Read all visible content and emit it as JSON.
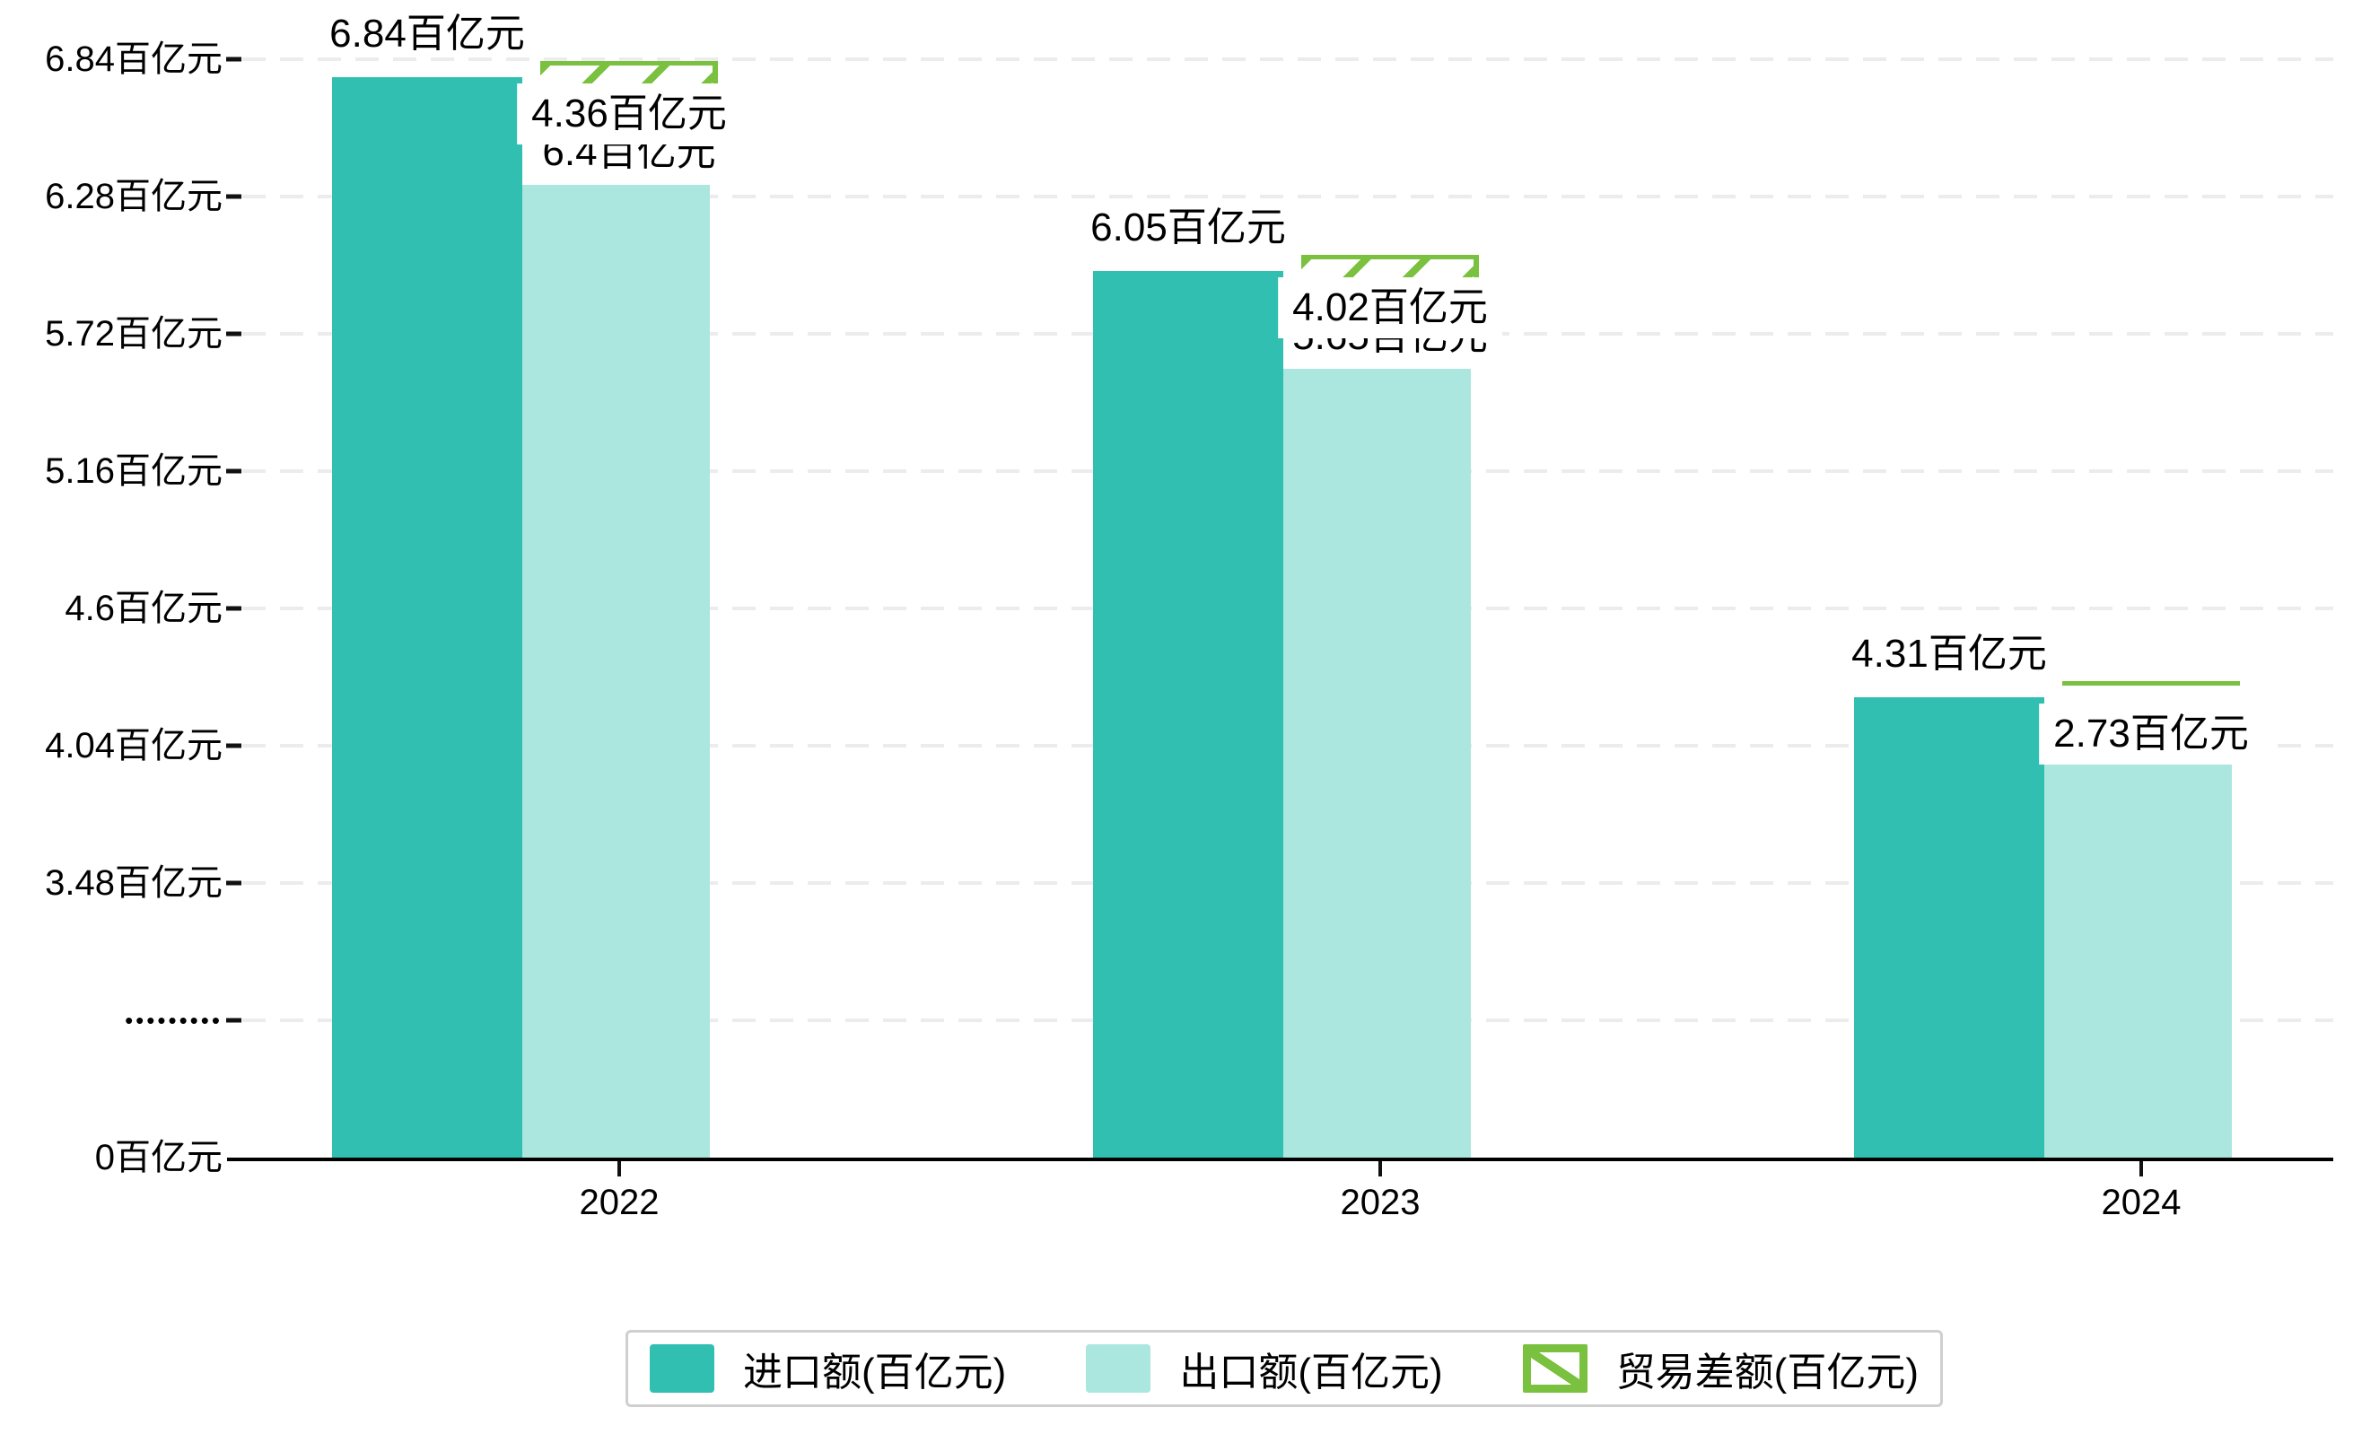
{
  "chart_data": {
    "type": "bar",
    "title": "",
    "categories": [
      "2022",
      "2023",
      "2024"
    ],
    "series": [
      {
        "name": "进口额(百亿元)",
        "color": "#31BFB2",
        "values": [
          6.84,
          6.05,
          4.31
        ],
        "labels": [
          "6.84百亿元",
          "6.05百亿元",
          "4.31百亿元"
        ]
      },
      {
        "name": "出口额(百亿元)",
        "color": "#ABE7DF",
        "values": [
          6.4,
          5.65,
          4.04
        ],
        "labels": [
          "6.4百亿元",
          "5.65百亿元",
          ""
        ]
      },
      {
        "name": "贸易差额(百亿元)",
        "color": "#79C13F",
        "style": "hatched",
        "values": [
          4.36,
          4.02,
          2.73
        ],
        "labels": [
          "4.36百亿元",
          "4.02百亿元",
          "2.73百亿元"
        ],
        "hatch_visible": [
          true,
          true,
          false
        ]
      }
    ],
    "y_axis": {
      "unit": "百亿元",
      "axis_break": true,
      "tick_labels": [
        "6.84百亿元",
        "6.28百亿元",
        "5.72百亿元",
        "5.16百亿元",
        "4.6百亿元",
        "4.04百亿元",
        "3.48百亿元",
        "•••••••••",
        "0百亿元"
      ],
      "tick_values": [
        6.84,
        6.28,
        5.72,
        5.16,
        4.6,
        4.04,
        3.48,
        null,
        0
      ]
    },
    "x_axis": {
      "tick_labels": [
        "2022",
        "2023",
        "2024"
      ]
    },
    "legend": {
      "position": "bottom",
      "items": [
        "进口额(百亿元)",
        "出口额(百亿元)",
        "贸易差额(百亿元)"
      ]
    },
    "grid": true,
    "colors": {
      "import": "#31BFB2",
      "export": "#ABE7DF",
      "balance": "#79C13F",
      "gridline": "#ececec",
      "axis": "#000000",
      "legend_border": "#cfcfcf"
    }
  }
}
